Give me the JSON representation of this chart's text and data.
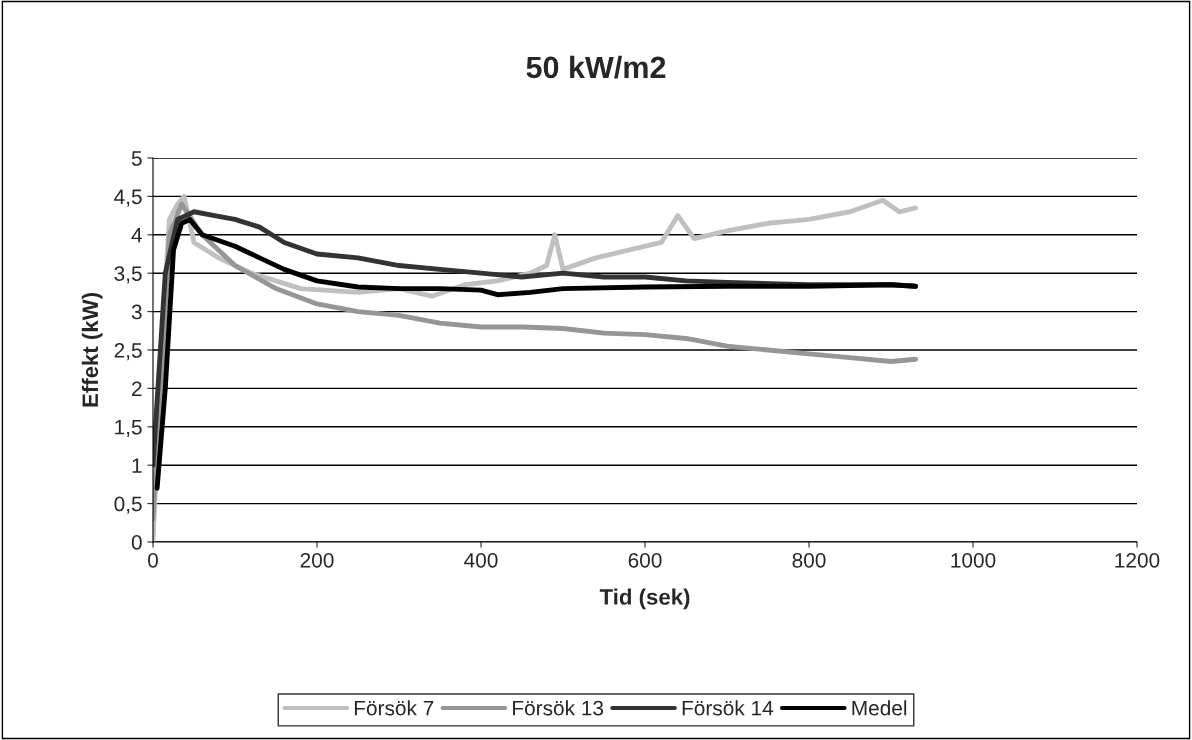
{
  "chart_data": {
    "type": "line",
    "title": "50 kW/m2",
    "xlabel": "Tid (sek)",
    "ylabel": "Effekt (kW)",
    "xlim": [
      0,
      1200
    ],
    "xticks": [
      0,
      200,
      400,
      600,
      800,
      1000,
      1200
    ],
    "ylim": [
      0,
      5
    ],
    "yticks": [
      {
        "value": 0,
        "label": "0"
      },
      {
        "value": 0.5,
        "label": "0,5"
      },
      {
        "value": 1,
        "label": "1"
      },
      {
        "value": 1.5,
        "label": "1,5"
      },
      {
        "value": 2,
        "label": "2"
      },
      {
        "value": 2.5,
        "label": "2,5"
      },
      {
        "value": 3,
        "label": "3"
      },
      {
        "value": 3.5,
        "label": "3,5"
      },
      {
        "value": 4,
        "label": "4"
      },
      {
        "value": 4.5,
        "label": "4,5"
      },
      {
        "value": 5,
        "label": "5"
      }
    ],
    "grid": "y",
    "legend": "bottom",
    "marker": "none",
    "line_style": "solid",
    "series": [
      {
        "name": "Försök 7",
        "color": "#c0c0c0",
        "x": [
          0,
          10,
          20,
          30,
          38,
          50,
          80,
          120,
          180,
          250,
          300,
          340,
          380,
          420,
          460,
          480,
          490,
          500,
          540,
          580,
          620,
          640,
          660,
          700,
          750,
          800,
          850,
          890,
          910,
          930
        ],
        "values": [
          0,
          2.5,
          4.2,
          4.4,
          4.5,
          3.9,
          3.7,
          3.5,
          3.3,
          3.25,
          3.3,
          3.2,
          3.35,
          3.4,
          3.5,
          3.6,
          4.0,
          3.55,
          3.7,
          3.8,
          3.9,
          4.25,
          3.95,
          4.05,
          4.15,
          4.2,
          4.3,
          4.45,
          4.3,
          4.35
        ]
      },
      {
        "name": "Försök 13",
        "color": "#969696",
        "x": [
          0,
          10,
          20,
          35,
          60,
          100,
          150,
          200,
          250,
          300,
          350,
          400,
          450,
          500,
          550,
          600,
          650,
          700,
          750,
          800,
          850,
          900,
          930
        ],
        "values": [
          0.3,
          2.0,
          4.0,
          4.4,
          4.0,
          3.6,
          3.3,
          3.1,
          3.0,
          2.95,
          2.85,
          2.8,
          2.8,
          2.78,
          2.72,
          2.7,
          2.65,
          2.55,
          2.5,
          2.45,
          2.4,
          2.35,
          2.38
        ]
      },
      {
        "name": "Försök 14",
        "color": "#333333",
        "x": [
          0,
          15,
          30,
          50,
          75,
          100,
          130,
          160,
          200,
          250,
          300,
          350,
          400,
          450,
          500,
          550,
          600,
          650,
          700,
          800,
          900,
          930
        ],
        "values": [
          1.0,
          3.5,
          4.2,
          4.3,
          4.25,
          4.2,
          4.1,
          3.9,
          3.75,
          3.7,
          3.6,
          3.55,
          3.5,
          3.45,
          3.5,
          3.45,
          3.45,
          3.4,
          3.38,
          3.35,
          3.35,
          3.33
        ]
      },
      {
        "name": "Medel",
        "color": "#000000",
        "x": [
          5,
          15,
          25,
          35,
          45,
          60,
          100,
          130,
          160,
          200,
          250,
          300,
          350,
          400,
          420,
          460,
          500,
          600,
          700,
          800,
          900,
          930
        ],
        "values": [
          0.7,
          2.0,
          3.8,
          4.15,
          4.2,
          4.0,
          3.85,
          3.7,
          3.55,
          3.4,
          3.32,
          3.3,
          3.3,
          3.28,
          3.22,
          3.25,
          3.3,
          3.32,
          3.33,
          3.33,
          3.35,
          3.33
        ]
      }
    ]
  }
}
